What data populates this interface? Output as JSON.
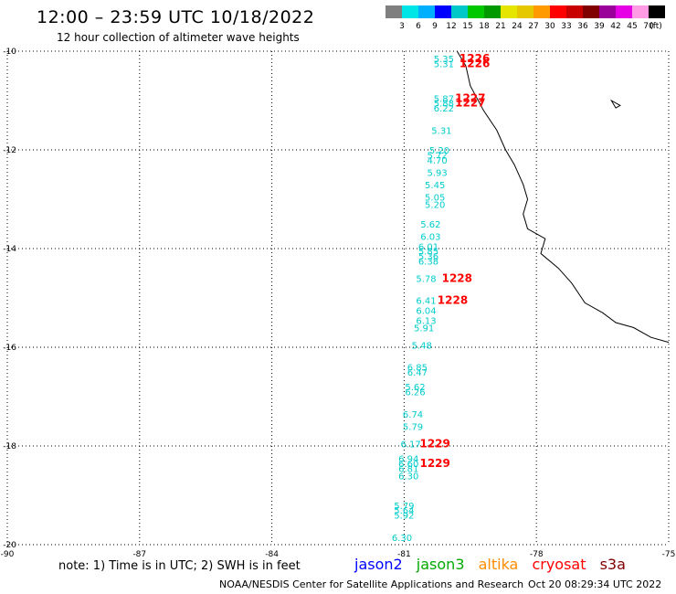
{
  "header": {
    "title": "12:00 – 23:59 UTC 10/18/2022",
    "subtitle": "12 hour collection of altimeter wave heights"
  },
  "colorbar": {
    "colors": [
      "#7f7f7f",
      "#00e5e5",
      "#00b0ff",
      "#0000ff",
      "#00c8c8",
      "#00c800",
      "#009a00",
      "#e5e500",
      "#e5c800",
      "#ff9a00",
      "#ff0000",
      "#c80000",
      "#800000",
      "#9a009a",
      "#e500e5",
      "#ff9ae5",
      "#000000"
    ],
    "labels": [
      "3",
      "6",
      "9",
      "12",
      "15",
      "18",
      "21",
      "24",
      "27",
      "30",
      "33",
      "36",
      "39",
      "42",
      "45",
      "70"
    ],
    "unit": "(ft)"
  },
  "map": {
    "lon_range": [
      -90,
      -75
    ],
    "lat_range": [
      -20,
      -10
    ],
    "lon_ticks": [
      "-90",
      "-87",
      "-84",
      "-81",
      "-78",
      "-75"
    ],
    "lat_ticks": [
      "-10",
      "-12",
      "-14",
      "-16",
      "-18",
      "-20"
    ],
    "coastline": [
      [
        -79.8,
        -10
      ],
      [
        -79.6,
        -10.3
      ],
      [
        -79.5,
        -10.7
      ],
      [
        -79.2,
        -11.2
      ],
      [
        -78.9,
        -11.6
      ],
      [
        -78.7,
        -12.0
      ],
      [
        -78.5,
        -12.3
      ],
      [
        -78.3,
        -12.7
      ],
      [
        -78.2,
        -13.0
      ],
      [
        -78.3,
        -13.3
      ],
      [
        -78.2,
        -13.6
      ],
      [
        -77.8,
        -13.8
      ],
      [
        -77.9,
        -14.1
      ],
      [
        -77.5,
        -14.4
      ],
      [
        -77.2,
        -14.7
      ],
      [
        -76.9,
        -15.1
      ],
      [
        -76.5,
        -15.3
      ],
      [
        -76.2,
        -15.5
      ],
      [
        -75.8,
        -15.6
      ],
      [
        -75.4,
        -15.8
      ],
      [
        -75.0,
        -15.9
      ]
    ],
    "island": [
      [
        -76.3,
        -11.0
      ],
      [
        -76.1,
        -11.1
      ],
      [
        -76.2,
        -11.15
      ]
    ],
    "swh_labels": [
      {
        "lon": -80.1,
        "lat": -10.15,
        "text": "5.35",
        "color": "#00cccc"
      },
      {
        "lon": -80.1,
        "lat": -10.25,
        "text": "5.31",
        "color": "#00cccc"
      },
      {
        "lon": -80.1,
        "lat": -10.95,
        "text": "5.87",
        "color": "#00cccc"
      },
      {
        "lon": -80.1,
        "lat": -11.05,
        "text": "5.88",
        "color": "#00cccc"
      },
      {
        "lon": -80.1,
        "lat": -11.15,
        "text": "6.22",
        "color": "#00cccc"
      },
      {
        "lon": -80.15,
        "lat": -11.6,
        "text": "5.31",
        "color": "#00cccc"
      },
      {
        "lon": -80.2,
        "lat": -12.0,
        "text": "5.20",
        "color": "#00cccc"
      },
      {
        "lon": -80.25,
        "lat": -12.1,
        "text": "5.72",
        "color": "#00cccc"
      },
      {
        "lon": -80.25,
        "lat": -12.2,
        "text": "4.70",
        "color": "#00cccc"
      },
      {
        "lon": -80.25,
        "lat": -12.45,
        "text": "5.93",
        "color": "#00cccc"
      },
      {
        "lon": -80.3,
        "lat": -12.7,
        "text": "5.45",
        "color": "#00cccc"
      },
      {
        "lon": -80.3,
        "lat": -12.95,
        "text": "5.05",
        "color": "#00cccc"
      },
      {
        "lon": -80.3,
        "lat": -13.1,
        "text": "5.20",
        "color": "#00cccc"
      },
      {
        "lon": -80.4,
        "lat": -13.5,
        "text": "5.62",
        "color": "#00cccc"
      },
      {
        "lon": -80.4,
        "lat": -13.75,
        "text": "6.03",
        "color": "#00cccc"
      },
      {
        "lon": -80.45,
        "lat": -13.95,
        "text": "6.01",
        "color": "#00cccc"
      },
      {
        "lon": -80.45,
        "lat": -14.05,
        "text": "5.85",
        "color": "#00cccc"
      },
      {
        "lon": -80.45,
        "lat": -14.15,
        "text": "5.36",
        "color": "#00cccc"
      },
      {
        "lon": -80.45,
        "lat": -14.25,
        "text": "6.38",
        "color": "#00cccc"
      },
      {
        "lon": -80.5,
        "lat": -14.6,
        "text": "5.78",
        "color": "#00cccc"
      },
      {
        "lon": -80.5,
        "lat": -15.05,
        "text": "6.41",
        "color": "#00cccc"
      },
      {
        "lon": -80.5,
        "lat": -15.25,
        "text": "6.04",
        "color": "#00cccc"
      },
      {
        "lon": -80.5,
        "lat": -15.45,
        "text": "6.13",
        "color": "#00cccc"
      },
      {
        "lon": -80.55,
        "lat": -15.6,
        "text": "5.91",
        "color": "#00cccc"
      },
      {
        "lon": -80.6,
        "lat": -15.95,
        "text": "5.48",
        "color": "#00cccc"
      },
      {
        "lon": -80.7,
        "lat": -16.4,
        "text": "6.85",
        "color": "#00cccc"
      },
      {
        "lon": -80.7,
        "lat": -16.5,
        "text": "6.47",
        "color": "#00cccc"
      },
      {
        "lon": -80.75,
        "lat": -16.8,
        "text": "5.62",
        "color": "#00cccc"
      },
      {
        "lon": -80.75,
        "lat": -16.9,
        "text": "6.26",
        "color": "#00cccc"
      },
      {
        "lon": -80.8,
        "lat": -17.35,
        "text": "6.74",
        "color": "#00cccc"
      },
      {
        "lon": -80.8,
        "lat": -17.6,
        "text": "5.79",
        "color": "#00cccc"
      },
      {
        "lon": -80.85,
        "lat": -17.95,
        "text": "6.17",
        "color": "#00cccc"
      },
      {
        "lon": -80.9,
        "lat": -18.25,
        "text": "6.94",
        "color": "#00cccc"
      },
      {
        "lon": -80.9,
        "lat": -18.35,
        "text": "6.60",
        "color": "#00cccc"
      },
      {
        "lon": -80.9,
        "lat": -18.45,
        "text": "6.81",
        "color": "#00cccc"
      },
      {
        "lon": -80.9,
        "lat": -18.6,
        "text": "6.30",
        "color": "#00cccc"
      },
      {
        "lon": -81.0,
        "lat": -19.2,
        "text": "5.79",
        "color": "#00cccc"
      },
      {
        "lon": -81.0,
        "lat": -19.3,
        "text": "5.64",
        "color": "#00cccc"
      },
      {
        "lon": -81.0,
        "lat": -19.4,
        "text": "5.92",
        "color": "#00cccc"
      },
      {
        "lon": -81.05,
        "lat": -19.85,
        "text": "6.30",
        "color": "#00cccc"
      }
    ],
    "time_labels": [
      {
        "lon": -79.4,
        "lat": -10.15,
        "text": "1226",
        "color": "#ff0000"
      },
      {
        "lon": -79.4,
        "lat": -10.25,
        "text": "1226",
        "color": "#ff0000"
      },
      {
        "lon": -79.5,
        "lat": -10.95,
        "text": "1227",
        "color": "#ff0000"
      },
      {
        "lon": -79.5,
        "lat": -11.05,
        "text": "1227",
        "color": "#ff0000"
      },
      {
        "lon": -79.8,
        "lat": -14.6,
        "text": "1228",
        "color": "#ff0000"
      },
      {
        "lon": -79.9,
        "lat": -15.05,
        "text": "1228",
        "color": "#ff0000"
      },
      {
        "lon": -80.3,
        "lat": -17.95,
        "text": "1229",
        "color": "#ff0000"
      },
      {
        "lon": -80.3,
        "lat": -18.35,
        "text": "1229",
        "color": "#ff0000"
      }
    ]
  },
  "footer": {
    "note": "note: 1) Time is in UTC; 2) SWH is in feet",
    "satellites": [
      {
        "name": "jason2",
        "color": "#0000ff"
      },
      {
        "name": "jason3",
        "color": "#00aa00"
      },
      {
        "name": "altika",
        "color": "#ff8c00"
      },
      {
        "name": "cryosat",
        "color": "#ff0000"
      },
      {
        "name": "s3a",
        "color": "#800000"
      }
    ],
    "credit": "NOAA/NESDIS Center for Satellite Applications and Research",
    "timestamp": "Oct 20 08:29:34 UTC 2022"
  }
}
